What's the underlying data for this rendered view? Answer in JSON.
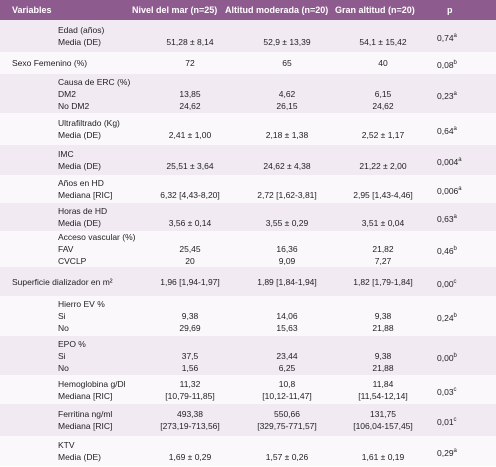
{
  "table": {
    "header": [
      "Variables",
      "Nivel del mar (n=25)",
      "Altitud moderada (n=20)",
      "Gran altitud (n=20)",
      "p"
    ],
    "groups": [
      {
        "title": "Edad (años)",
        "lines": [
          {
            "label": "Media (DE)",
            "values": [
              "51,28 ± 8,14",
              "52,9 ± 13,39",
              "54,1 ± 15,42"
            ]
          }
        ],
        "p": "0,74",
        "note": "a"
      },
      {
        "title": "Sexo Femenino (%)",
        "lines": [
          {
            "values": [
              "72",
              "65",
              "40"
            ]
          }
        ],
        "p": "0,08",
        "note": "b"
      },
      {
        "title": "Causa de ERC (%)",
        "lines": [
          {
            "label": "DM2",
            "values": [
              "13,85",
              "4,62",
              "6,15"
            ]
          },
          {
            "label": "No DM2",
            "values": [
              "24,62",
              "26,15",
              "24,62"
            ]
          }
        ],
        "p": "0,23",
        "note": "a"
      },
      {
        "title": "Ultrafiltrado (Kg)",
        "lines": [
          {
            "label": "Media (DE)",
            "values": [
              "2,41 ± 1,00",
              "2,18 ± 1,38",
              "2,52 ± 1,17"
            ]
          }
        ],
        "p": "0,64",
        "note": "a"
      },
      {
        "title": "IMC",
        "lines": [
          {
            "label": "Media (DE)",
            "values": [
              "25,51 ± 3,64",
              "24,62 ± 4,38",
              "21,22 ± 2,00"
            ]
          }
        ],
        "p": "0,004",
        "note": "a"
      },
      {
        "title": "Años en HD",
        "lines": [
          {
            "label": "Mediana [RIC]",
            "values": [
              "6,32 [4,43-8,20]",
              "2,72 [1,62-3,81]",
              "2,95 [1,43-4,46]"
            ]
          }
        ],
        "p": "0,006",
        "note": "a"
      },
      {
        "title": "Horas de HD",
        "lines": [
          {
            "label": "Media (DE)",
            "values": [
              "3,56 ± 0,14",
              "3,55 ± 0,29",
              "3,51 ± 0,04"
            ]
          }
        ],
        "p": "0,63",
        "note": "a"
      },
      {
        "title": "Acceso vascular (%)",
        "lines": [
          {
            "label": "FAV",
            "values": [
              "25,45",
              "16,36",
              "21,82"
            ]
          },
          {
            "label": "CVCLP",
            "values": [
              "20",
              "9,09",
              "7,27"
            ]
          }
        ],
        "p": "0,46",
        "note": "b"
      },
      {
        "title": "Superficie dializador en m²",
        "lines": [
          {
            "values": [
              "1,96 [1,94-1,97]",
              "1,89 [1,84-1,94]",
              "1,82 [1,79-1,84]"
            ]
          }
        ],
        "p": "0,00",
        "note": "c"
      },
      {
        "title": "Hierro EV %",
        "lines": [
          {
            "label": "Si",
            "values": [
              "9,38",
              "14,06",
              "9,38"
            ]
          },
          {
            "label": "No",
            "values": [
              "29,69",
              "15,63",
              "21,88"
            ]
          }
        ],
        "p": "0,24",
        "note": "b"
      },
      {
        "title": "EPO %",
        "lines": [
          {
            "label": "Si",
            "values": [
              "37,5",
              "23,44",
              "9,38"
            ]
          },
          {
            "label": "No",
            "values": [
              "1,56",
              "6,25",
              "21,88"
            ]
          }
        ],
        "p": "0,00",
        "note": "b"
      },
      {
        "title": "Hemoglobina g/Dl",
        "lines": [
          {
            "values": [
              "11,32",
              "10,8",
              "11,84"
            ]
          },
          {
            "label": "Mediana [RIC]",
            "values": [
              "[10,79-11,85]",
              "[10,12-11,47]",
              "[11,54-12,14]"
            ]
          }
        ],
        "p": "0,03",
        "note": "c"
      },
      {
        "title": "Ferritina ng/ml",
        "lines": [
          {
            "values": [
              "493,38",
              "550,66",
              "131,75"
            ]
          },
          {
            "label": "Mediana [RIC]",
            "values": [
              "[273,19-713,56]",
              "[329,75-771,57]",
              "[106,04-157,45]"
            ]
          }
        ],
        "p": "0,01",
        "note": "c"
      },
      {
        "title": "KTV",
        "lines": [
          {
            "label": "Media (DE)",
            "values": [
              "1,69 ± 0,29",
              "1,57 ± 0,26",
              "1,61 ± 0,19"
            ]
          }
        ],
        "p": "0,29",
        "note": "a"
      }
    ]
  }
}
